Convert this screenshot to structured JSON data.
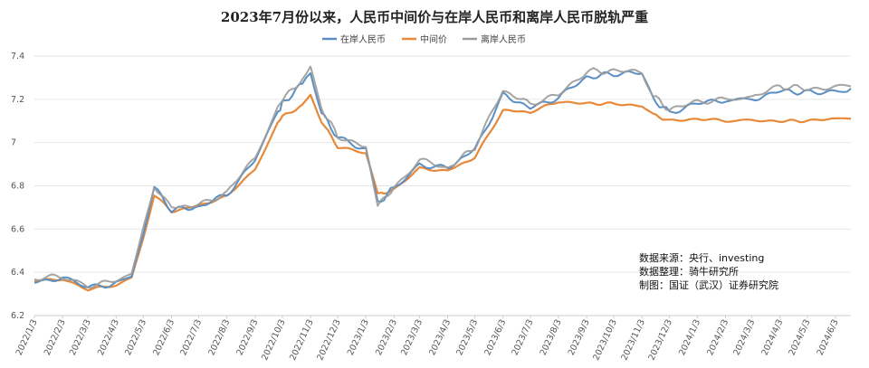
{
  "chart_data": {
    "type": "line",
    "title": "2023年7月份以来，人民币中间价与在岸人民币和离岸人民币脱轨严重",
    "xlabel": "",
    "ylabel": "",
    "ylim": [
      6.2,
      7.4
    ],
    "yticks": [
      "6.2",
      "6.4",
      "6.6",
      "6.8",
      "7",
      "7.2",
      "7.4"
    ],
    "grid": true,
    "legend_position": "top-center",
    "x_tick_labels": [
      "2022/1/3",
      "2022/2/3",
      "2022/3/3",
      "2022/4/3",
      "2022/5/3",
      "2022/6/3",
      "2022/7/3",
      "2022/8/3",
      "2022/9/3",
      "2022/10/3",
      "2022/11/3",
      "2022/12/3",
      "2023/1/3",
      "2023/2/3",
      "2023/3/3",
      "2023/4/3",
      "2023/5/3",
      "2023/6/3",
      "2023/7/3",
      "2023/8/3",
      "2023/9/3",
      "2023/10/3",
      "2023/11/3",
      "2023/12/3",
      "2024/1/3",
      "2024/2/3",
      "2024/3/3",
      "2024/4/3",
      "2024/5/3",
      "2024/6/3"
    ],
    "x": [
      "2022/1/3",
      "2022/2/3",
      "2022/3/3",
      "2022/4/3",
      "2022/4/20",
      "2022/5/3",
      "2022/5/15",
      "2022/6/3",
      "2022/7/3",
      "2022/8/3",
      "2022/9/3",
      "2022/9/28",
      "2022/10/3",
      "2022/10/25",
      "2022/11/3",
      "2022/11/15",
      "2022/12/3",
      "2023/1/3",
      "2023/1/16",
      "2023/2/3",
      "2023/3/3",
      "2023/4/3",
      "2023/5/3",
      "2023/6/3",
      "2023/7/3",
      "2023/8/3",
      "2023/9/3",
      "2023/10/3",
      "2023/11/3",
      "2023/11/15",
      "2023/12/3",
      "2024/1/3",
      "2024/2/3",
      "2024/3/3",
      "2024/4/3",
      "2024/5/3",
      "2024/6/3",
      "2024/6/20"
    ],
    "series": [
      {
        "name": "在岸人民币",
        "color": "#5b8fc4",
        "values": [
          6.36,
          6.37,
          6.33,
          6.35,
          6.38,
          6.58,
          6.79,
          6.69,
          6.7,
          6.76,
          6.92,
          7.14,
          7.18,
          7.27,
          7.32,
          7.14,
          7.02,
          6.97,
          6.72,
          6.79,
          6.9,
          6.88,
          6.97,
          7.22,
          7.16,
          7.21,
          7.3,
          7.32,
          7.32,
          7.2,
          7.14,
          7.18,
          7.2,
          7.2,
          7.24,
          7.23,
          7.24,
          7.25
        ]
      },
      {
        "name": "中间价",
        "color": "#e8893a",
        "values": [
          6.36,
          6.37,
          6.32,
          6.34,
          6.37,
          6.56,
          6.76,
          6.68,
          6.71,
          6.75,
          6.88,
          7.09,
          7.12,
          7.17,
          7.22,
          7.1,
          6.98,
          6.95,
          6.76,
          6.78,
          6.88,
          6.87,
          6.93,
          7.15,
          7.14,
          7.19,
          7.18,
          7.18,
          7.17,
          7.13,
          7.1,
          7.11,
          7.1,
          7.1,
          7.1,
          7.1,
          7.11,
          7.11
        ]
      },
      {
        "name": "离岸人民币",
        "color": "#9b9b9b",
        "values": [
          6.37,
          6.38,
          6.34,
          6.36,
          6.39,
          6.6,
          6.8,
          6.7,
          6.71,
          6.77,
          6.93,
          7.16,
          7.2,
          7.29,
          7.34,
          7.16,
          7.03,
          6.98,
          6.71,
          6.79,
          6.92,
          6.88,
          6.98,
          7.24,
          7.18,
          7.22,
          7.33,
          7.33,
          7.33,
          7.22,
          7.15,
          7.19,
          7.2,
          7.21,
          7.26,
          7.25,
          7.25,
          7.26
        ]
      }
    ],
    "annotations": [
      "数据来源：央行、investing",
      "数据整理：骑牛研究所",
      "制图：国证（武汉）证券研究院"
    ]
  }
}
